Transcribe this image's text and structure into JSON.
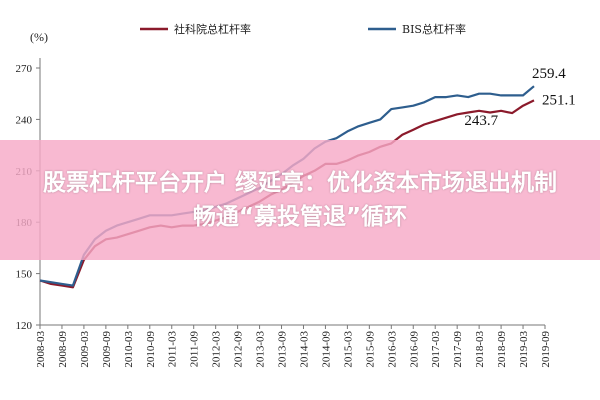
{
  "banner": {
    "line1": "股票杠杆平台开户 缪延亮：优化资本市场退出机制",
    "line2": "畅通“募投管退”循环"
  },
  "colors": {
    "series1": "#8B1A2B",
    "series2": "#2E5E8E",
    "axis": "#777777",
    "banner": "#F7AAC7"
  },
  "chart_data": {
    "type": "line",
    "unit_label": "(%)",
    "ylim": [
      120,
      270
    ],
    "yticks": [
      120,
      150,
      180,
      210,
      240,
      270
    ],
    "xlim": [
      "2008-03",
      "2019-09"
    ],
    "x_tick_labels": [
      "2008-03",
      "2008-09",
      "2009-03",
      "2009-09",
      "2010-03",
      "2010-09",
      "2011-03",
      "2011-09",
      "2012-03",
      "2012-09",
      "2013-03",
      "2013-09",
      "2014-03",
      "2014-09",
      "2015-03",
      "2015-09",
      "2016-03",
      "2016-09",
      "2017-03",
      "2017-09",
      "2018-03",
      "2018-09",
      "2019-03",
      "2019-09"
    ],
    "grid": false,
    "legend_position": "top",
    "x": [
      "2008-03",
      "2008-06",
      "2008-09",
      "2008-12",
      "2009-03",
      "2009-06",
      "2009-09",
      "2009-12",
      "2010-03",
      "2010-06",
      "2010-09",
      "2010-12",
      "2011-03",
      "2011-06",
      "2011-09",
      "2011-12",
      "2012-03",
      "2012-06",
      "2012-09",
      "2012-12",
      "2013-03",
      "2013-06",
      "2013-09",
      "2013-12",
      "2014-03",
      "2014-06",
      "2014-09",
      "2014-12",
      "2015-03",
      "2015-06",
      "2015-09",
      "2015-12",
      "2016-03",
      "2016-06",
      "2016-09",
      "2016-12",
      "2017-03",
      "2017-06",
      "2017-09",
      "2017-12",
      "2018-03",
      "2018-06",
      "2018-09",
      "2018-12",
      "2019-03",
      "2019-06"
    ],
    "series": [
      {
        "name": "社科院总杠杆率",
        "values": [
          146,
          144,
          143,
          142,
          158,
          166,
          170,
          171,
          173,
          175,
          177,
          178,
          177,
          178,
          178,
          179,
          181,
          183,
          186,
          189,
          192,
          196,
          199,
          203,
          207,
          210,
          214,
          214,
          216,
          219,
          221,
          224,
          226,
          231,
          234,
          237,
          239,
          241,
          243,
          244,
          245,
          244,
          245,
          243.7,
          248,
          251.1
        ]
      },
      {
        "name": "BIS总杠杆率",
        "values": [
          146,
          145,
          144,
          143,
          161,
          170,
          175,
          178,
          180,
          182,
          184,
          184,
          184,
          185,
          186,
          187,
          189,
          191,
          194,
          197,
          200,
          204,
          208,
          213,
          217,
          223,
          227,
          229,
          233,
          236,
          238,
          240,
          246,
          247,
          248,
          250,
          253,
          253,
          254,
          253,
          255,
          255,
          254,
          254,
          254,
          259.4
        ]
      }
    ],
    "annotations": [
      {
        "text": "259.4",
        "series": 1,
        "x": "2019-06",
        "y": 259.4
      },
      {
        "text": "251.1",
        "series": 0,
        "x": "2019-06",
        "y": 251.1
      },
      {
        "text": "243.7",
        "series": 0,
        "x": "2018-12",
        "y": 243.7
      }
    ]
  }
}
